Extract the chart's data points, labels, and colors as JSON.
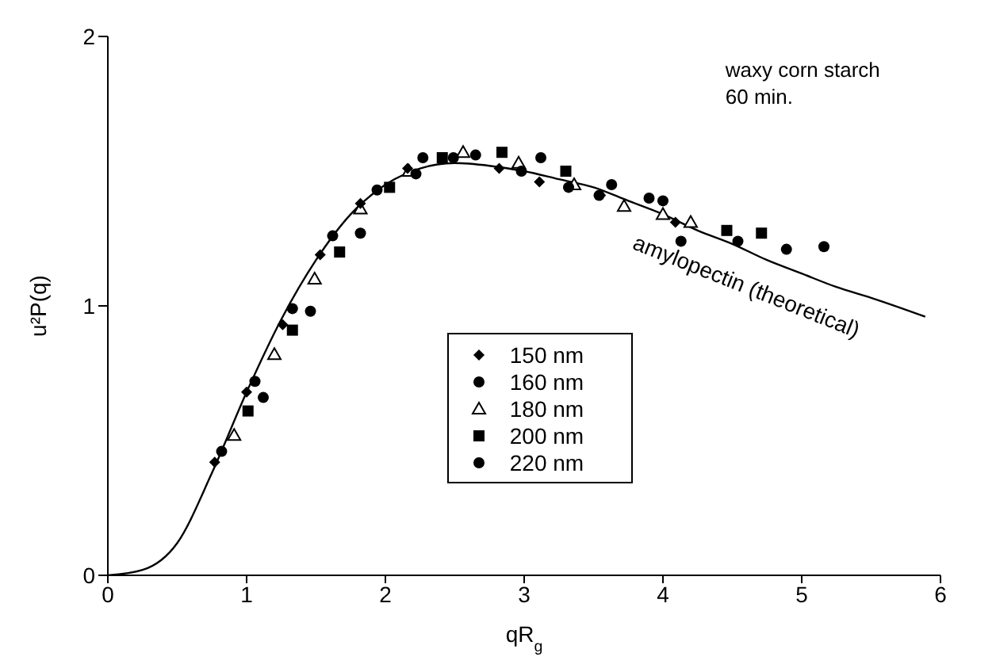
{
  "chart_data": {
    "type": "scatter",
    "xlabel": "qR$_{g}$",
    "ylabel": "u²P(q)",
    "xlim": [
      0,
      6
    ],
    "xticks": [
      0,
      1,
      2,
      3,
      4,
      5,
      6
    ],
    "ylim": [
      0,
      2
    ],
    "yticks": [
      0,
      1,
      2
    ],
    "grid": false,
    "legend": "bottom",
    "annotations": [
      "waxy corn starch",
      "60 min."
    ],
    "series": [
      {
        "name": "150 nm",
        "color": "#000000",
        "marker": "diamond",
        "x": [
          0.77,
          1.0,
          1.26,
          1.53,
          1.82,
          2.16,
          2.82,
          3.11,
          3.55,
          4.09
        ],
        "values": [
          0.42,
          0.68,
          0.93,
          1.19,
          1.38,
          1.51,
          1.51,
          1.46,
          1.41,
          1.31
        ]
      },
      {
        "name": "160 nm",
        "color": "#000000",
        "marker": "circle",
        "x": [
          0.82,
          1.12,
          1.46,
          1.82,
          2.22,
          2.49,
          2.98,
          3.32,
          3.63,
          4.0,
          4.13,
          4.89
        ],
        "values": [
          0.46,
          0.66,
          0.98,
          1.27,
          1.49,
          1.55,
          1.5,
          1.44,
          1.45,
          1.39,
          1.24,
          1.21
        ]
      },
      {
        "name": "180 nm",
        "color": "#000000",
        "marker": "triangle",
        "x": [
          0.91,
          1.2,
          1.49,
          1.82,
          2.17,
          2.56,
          2.96,
          3.36,
          3.72,
          4.0,
          4.2
        ],
        "values": [
          0.52,
          0.82,
          1.1,
          1.36,
          1.5,
          1.57,
          1.53,
          1.45,
          1.37,
          1.34,
          1.31
        ]
      },
      {
        "name": "200 nm",
        "color": "#000000",
        "marker": "square",
        "x": [
          1.01,
          1.33,
          1.67,
          2.03,
          2.41,
          2.84,
          3.3,
          4.46,
          4.71
        ],
        "values": [
          0.61,
          0.91,
          1.2,
          1.44,
          1.55,
          1.57,
          1.5,
          1.28,
          1.27
        ]
      },
      {
        "name": "220 nm",
        "color": "#000000",
        "marker": "circle",
        "x": [
          1.06,
          1.33,
          1.62,
          1.94,
          2.27,
          2.65,
          3.12,
          3.54,
          3.9,
          4.54,
          5.16
        ],
        "values": [
          0.72,
          0.99,
          1.26,
          1.43,
          1.55,
          1.56,
          1.55,
          1.41,
          1.4,
          1.24,
          1.22
        ]
      },
      {
        "name": "amylopectin (theoretical)",
        "type": "line",
        "color": "#000000",
        "marker": "none",
        "x": [
          0,
          0.25,
          0.5,
          0.75,
          1,
          1.25,
          1.5,
          1.75,
          2,
          2.25,
          2.5,
          2.75,
          3,
          3.25,
          3.5,
          3.75,
          4,
          4.25,
          4.5,
          4.75,
          5,
          5.25,
          5.5,
          5.89
        ],
        "values": [
          0,
          0.02,
          0.12,
          0.38,
          0.68,
          0.95,
          1.17,
          1.34,
          1.45,
          1.51,
          1.53,
          1.52,
          1.5,
          1.47,
          1.44,
          1.39,
          1.34,
          1.28,
          1.23,
          1.17,
          1.12,
          1.07,
          1.03,
          0.96
        ]
      }
    ]
  }
}
